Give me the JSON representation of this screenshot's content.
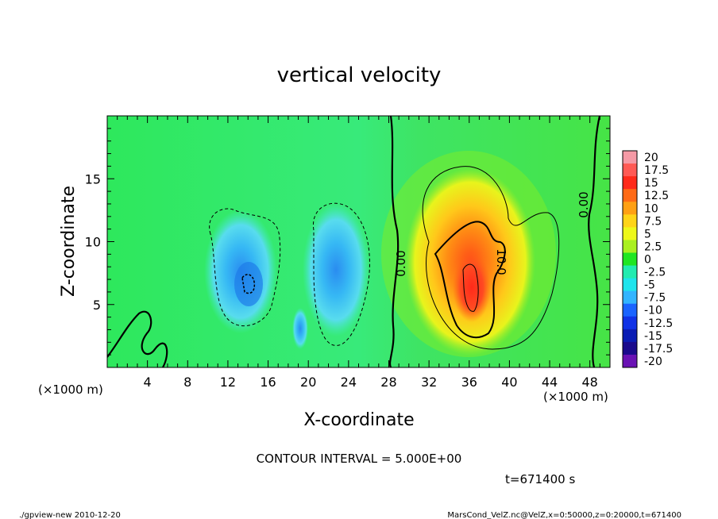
{
  "chart_data": {
    "type": "heatmap",
    "title": "vertical velocity",
    "xlabel": "X-coordinate",
    "ylabel": "Z-coordinate",
    "x_unit": "(×1000 m)",
    "y_unit": "(×1000 m)",
    "xlim": [
      0,
      50
    ],
    "ylim": [
      0,
      20
    ],
    "x_ticks": [
      4,
      8,
      12,
      16,
      20,
      24,
      28,
      32,
      36,
      40,
      44,
      48
    ],
    "y_ticks": [
      5,
      10,
      15
    ],
    "colorbar_labels": [
      "20",
      "17.5",
      "15",
      "12.5",
      "10",
      "7.5",
      "5",
      "2.5",
      "0",
      "-2.5",
      "-5",
      "-7.5",
      "-10",
      "-12.5",
      "-15",
      "-17.5",
      "-20"
    ],
    "colorbar_colors": [
      "#f59aa6",
      "#ff5a55",
      "#ff2a1a",
      "#ff6a16",
      "#ffa014",
      "#ffd418",
      "#eef81a",
      "#aaf020",
      "#20e622",
      "#22ecb0",
      "#1ee4ec",
      "#32b4ff",
      "#1a64ff",
      "#1032e6",
      "#0a1cb4",
      "#1a0a8c",
      "#6a12b4"
    ],
    "contour_labels": [
      "0.00",
      "10.0",
      "0.00"
    ],
    "contour_interval": "CONTOUR INTERVAL = 5.000E+00",
    "field": {
      "background": 0,
      "features": [
        {
          "sign": "updraft",
          "x_center": 36,
          "z_center": 6.5,
          "max": 17.5
        },
        {
          "sign": "downdraft",
          "x_center": 14,
          "z_center": 7.5,
          "min": -10
        },
        {
          "sign": "downdraft",
          "x_center": 22,
          "z_center": 7,
          "min": -7.5
        },
        {
          "sign": "downdraft",
          "x_center": 19,
          "z_center": 3,
          "min": -5
        }
      ]
    }
  },
  "time_label": "t=671400 s",
  "footer_left": "./gpview-new   2010-12-20",
  "footer_right": "MarsCond_VelZ.nc@VelZ,x=0:50000,z=0:20000,t=671400"
}
